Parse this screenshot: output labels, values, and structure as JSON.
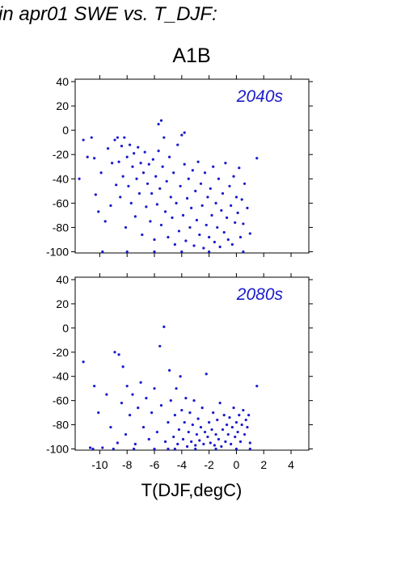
{
  "page_title": "in apr01 SWE vs. T_DJF:",
  "chart_data": {
    "type": "scatter",
    "title": "A1B",
    "xlabel": "T(DJF,degC)",
    "ylabel": "",
    "xlim": [
      -11.8,
      5.3
    ],
    "ylim": [
      -101,
      42
    ],
    "xticks": [
      -10,
      -8,
      -6,
      -4,
      -2,
      0,
      2,
      4
    ],
    "yticks": [
      40,
      20,
      0,
      -20,
      -40,
      -60,
      -80,
      -100
    ],
    "point_color": "#1a1acc",
    "grid": false,
    "panels": [
      {
        "label": "2040s",
        "points": [
          [
            -11.5,
            -40
          ],
          [
            -11.2,
            -8
          ],
          [
            -10.9,
            -22
          ],
          [
            -10.6,
            -6
          ],
          [
            -10.4,
            -23
          ],
          [
            -10.3,
            -53
          ],
          [
            -10.1,
            -67
          ],
          [
            -9.9,
            -35
          ],
          [
            -9.6,
            -75
          ],
          [
            -9.4,
            -15
          ],
          [
            -9.2,
            -62
          ],
          [
            -9.1,
            -27
          ],
          [
            -8.9,
            -8
          ],
          [
            -8.8,
            -45
          ],
          [
            -8.7,
            -6
          ],
          [
            -8.6,
            -26
          ],
          [
            -8.5,
            -55
          ],
          [
            -8.4,
            -13
          ],
          [
            -8.3,
            -38
          ],
          [
            -8.2,
            -6
          ],
          [
            -8.1,
            -80
          ],
          [
            -8.0,
            -22
          ],
          [
            -7.9,
            -46
          ],
          [
            -7.8,
            -12
          ],
          [
            -7.7,
            -60
          ],
          [
            -7.6,
            -30
          ],
          [
            -7.5,
            -19
          ],
          [
            -7.4,
            -71
          ],
          [
            -7.3,
            -40
          ],
          [
            -7.2,
            -14
          ],
          [
            -7.1,
            -52
          ],
          [
            -7.0,
            -27
          ],
          [
            -6.9,
            -86
          ],
          [
            -6.8,
            -35
          ],
          [
            -6.7,
            -18
          ],
          [
            -6.6,
            -63
          ],
          [
            -6.5,
            -44
          ],
          [
            -6.4,
            -28
          ],
          [
            -6.3,
            -75
          ],
          [
            -6.2,
            -52
          ],
          [
            -6.1,
            -24
          ],
          [
            -6.0,
            -90
          ],
          [
            -5.9,
            -38
          ],
          [
            -5.8,
            -61
          ],
          [
            -5.7,
            -17
          ],
          [
            -5.6,
            -48
          ],
          [
            -5.5,
            -78
          ],
          [
            -5.4,
            -30
          ],
          [
            -5.3,
            -6
          ],
          [
            -5.2,
            -67
          ],
          [
            -5.1,
            -42
          ],
          [
            -5.0,
            -88
          ],
          [
            -4.9,
            -22
          ],
          [
            -4.8,
            -55
          ],
          [
            -4.7,
            -72
          ],
          [
            -4.6,
            -35
          ],
          [
            -4.5,
            -94
          ],
          [
            -4.4,
            -60
          ],
          [
            -4.3,
            -12
          ],
          [
            -4.2,
            -83
          ],
          [
            -4.1,
            -46
          ],
          [
            -4.0,
            -4
          ],
          [
            -3.9,
            -70
          ],
          [
            -3.8,
            -28
          ],
          [
            -3.7,
            -91
          ],
          [
            -3.6,
            -56
          ],
          [
            -3.5,
            -40
          ],
          [
            -3.4,
            -80
          ],
          [
            -3.3,
            -64
          ],
          [
            -3.2,
            -33
          ],
          [
            -3.1,
            -95
          ],
          [
            -3.0,
            -50
          ],
          [
            -2.9,
            -74
          ],
          [
            -2.8,
            -26
          ],
          [
            -2.7,
            -86
          ],
          [
            -2.6,
            -44
          ],
          [
            -2.5,
            -62
          ],
          [
            -2.4,
            -97
          ],
          [
            -2.3,
            -35
          ],
          [
            -2.2,
            -78
          ],
          [
            -2.1,
            -55
          ],
          [
            -2.0,
            -88
          ],
          [
            -1.9,
            -48
          ],
          [
            -1.8,
            -70
          ],
          [
            -1.7,
            -30
          ],
          [
            -1.6,
            -92
          ],
          [
            -1.5,
            -60
          ],
          [
            -1.4,
            -80
          ],
          [
            -1.3,
            -40
          ],
          [
            -1.2,
            -96
          ],
          [
            -1.1,
            -66
          ],
          [
            -1.0,
            -52
          ],
          [
            -0.9,
            -84
          ],
          [
            -0.8,
            -27
          ],
          [
            -0.7,
            -72
          ],
          [
            -0.6,
            -90
          ],
          [
            -0.5,
            -46
          ],
          [
            -0.4,
            -62
          ],
          [
            -0.3,
            -94
          ],
          [
            -0.2,
            -38
          ],
          [
            -0.1,
            -76
          ],
          [
            0.0,
            -55
          ],
          [
            0.1,
            -68
          ],
          [
            0.2,
            -31
          ],
          [
            0.3,
            -88
          ],
          [
            0.4,
            -57
          ],
          [
            0.5,
            -77
          ],
          [
            0.6,
            -44
          ],
          [
            0.8,
            -64
          ],
          [
            1.0,
            -85
          ],
          [
            1.5,
            -23
          ],
          [
            -5.5,
            8
          ],
          [
            -5.7,
            5
          ],
          [
            -3.8,
            -2
          ],
          [
            -9.8,
            -100
          ],
          [
            -8.0,
            -100
          ],
          [
            -6.0,
            -100
          ],
          [
            -4.0,
            -100
          ],
          [
            -2.0,
            -100
          ],
          [
            0.5,
            -100
          ]
        ]
      },
      {
        "label": "2080s",
        "points": [
          [
            -11.2,
            -28
          ],
          [
            -10.7,
            -99
          ],
          [
            -10.4,
            -48
          ],
          [
            -10.1,
            -70
          ],
          [
            -9.8,
            -99
          ],
          [
            -9.5,
            -55
          ],
          [
            -9.2,
            -82
          ],
          [
            -8.9,
            -20
          ],
          [
            -8.7,
            -95
          ],
          [
            -8.6,
            -22
          ],
          [
            -8.4,
            -62
          ],
          [
            -8.3,
            -32
          ],
          [
            -8.1,
            -88
          ],
          [
            -8.0,
            -48
          ],
          [
            -7.8,
            -72
          ],
          [
            -7.6,
            -55
          ],
          [
            -7.4,
            -96
          ],
          [
            -7.2,
            -66
          ],
          [
            -7.0,
            -45
          ],
          [
            -6.8,
            -82
          ],
          [
            -6.6,
            -58
          ],
          [
            -6.4,
            -92
          ],
          [
            -6.2,
            -70
          ],
          [
            -6.0,
            -50
          ],
          [
            -5.8,
            -86
          ],
          [
            -5.6,
            -15
          ],
          [
            -5.5,
            -64
          ],
          [
            -5.3,
            1
          ],
          [
            -5.2,
            -94
          ],
          [
            -5.0,
            -78
          ],
          [
            -4.9,
            -35
          ],
          [
            -4.8,
            -60
          ],
          [
            -4.6,
            -90
          ],
          [
            -4.5,
            -72
          ],
          [
            -4.4,
            -50
          ],
          [
            -4.3,
            -96
          ],
          [
            -4.2,
            -84
          ],
          [
            -4.1,
            -40
          ],
          [
            -4.0,
            -68
          ],
          [
            -3.9,
            -92
          ],
          [
            -3.8,
            -78
          ],
          [
            -3.7,
            -58
          ],
          [
            -3.6,
            -98
          ],
          [
            -3.5,
            -86
          ],
          [
            -3.4,
            -70
          ],
          [
            -3.3,
            -94
          ],
          [
            -3.2,
            -80
          ],
          [
            -3.1,
            -60
          ],
          [
            -3.0,
            -97
          ],
          [
            -2.9,
            -88
          ],
          [
            -2.8,
            -75
          ],
          [
            -2.7,
            -93
          ],
          [
            -2.6,
            -82
          ],
          [
            -2.5,
            -66
          ],
          [
            -2.4,
            -96
          ],
          [
            -2.3,
            -86
          ],
          [
            -2.2,
            -38
          ],
          [
            -2.1,
            -90
          ],
          [
            -2.0,
            -78
          ],
          [
            -1.9,
            -95
          ],
          [
            -1.8,
            -84
          ],
          [
            -1.7,
            -70
          ],
          [
            -1.6,
            -97
          ],
          [
            -1.5,
            -88
          ],
          [
            -1.4,
            -76
          ],
          [
            -1.3,
            -92
          ],
          [
            -1.2,
            -62
          ],
          [
            -1.1,
            -98
          ],
          [
            -1.0,
            -84
          ],
          [
            -0.9,
            -72
          ],
          [
            -0.8,
            -94
          ],
          [
            -0.7,
            -80
          ],
          [
            -0.6,
            -88
          ],
          [
            -0.5,
            -74
          ],
          [
            -0.4,
            -96
          ],
          [
            -0.3,
            -82
          ],
          [
            -0.2,
            -66
          ],
          [
            -0.1,
            -90
          ],
          [
            0.0,
            -78
          ],
          [
            0.1,
            -86
          ],
          [
            0.2,
            -72
          ],
          [
            0.3,
            -94
          ],
          [
            0.4,
            -80
          ],
          [
            0.5,
            -68
          ],
          [
            0.6,
            -88
          ],
          [
            0.7,
            -76
          ],
          [
            0.8,
            -82
          ],
          [
            0.9,
            -72
          ],
          [
            1.0,
            -95
          ],
          [
            1.5,
            -48
          ],
          [
            -10.5,
            -100
          ],
          [
            -9.0,
            -100
          ],
          [
            -7.5,
            -100
          ],
          [
            -6.0,
            -100
          ],
          [
            -4.5,
            -100
          ],
          [
            -3.0,
            -100
          ],
          [
            -1.5,
            -100
          ],
          [
            0.0,
            -100
          ],
          [
            1.0,
            -100
          ],
          [
            -5.0,
            -100
          ]
        ]
      }
    ]
  }
}
